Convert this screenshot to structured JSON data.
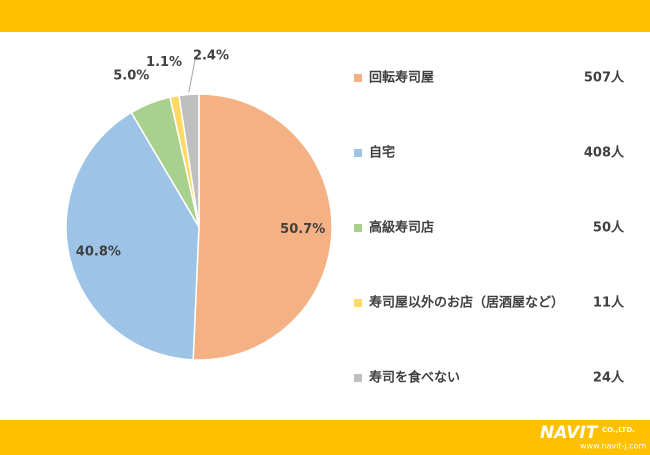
{
  "chart_data": {
    "type": "pie",
    "categories": [
      "回転寿司屋",
      "自宅",
      "高級寿司店",
      "寿司屋以外のお店（居酒屋など）",
      "寿司を食べない"
    ],
    "values": [
      50.7,
      40.8,
      5.0,
      1.1,
      2.4
    ],
    "value_labels": [
      "50.7%",
      "40.8%",
      "5.0%",
      "1.1%",
      "2.4%"
    ],
    "colors": [
      "#F4B183",
      "#9DC3E6",
      "#A9D18E",
      "#FFD966",
      "#BFBFBF"
    ],
    "counts": [
      {
        "value": 507,
        "label": "507人"
      },
      {
        "value": 408,
        "label": "408人"
      },
      {
        "value": 50,
        "label": "50人"
      },
      {
        "value": 11,
        "label": "11人"
      },
      {
        "value": 24,
        "label": "24人"
      }
    ],
    "legend": "right"
  },
  "footer": {
    "brand": "NAVIT",
    "company": "CO.,LTD.",
    "url": "www.navit-j.com"
  }
}
